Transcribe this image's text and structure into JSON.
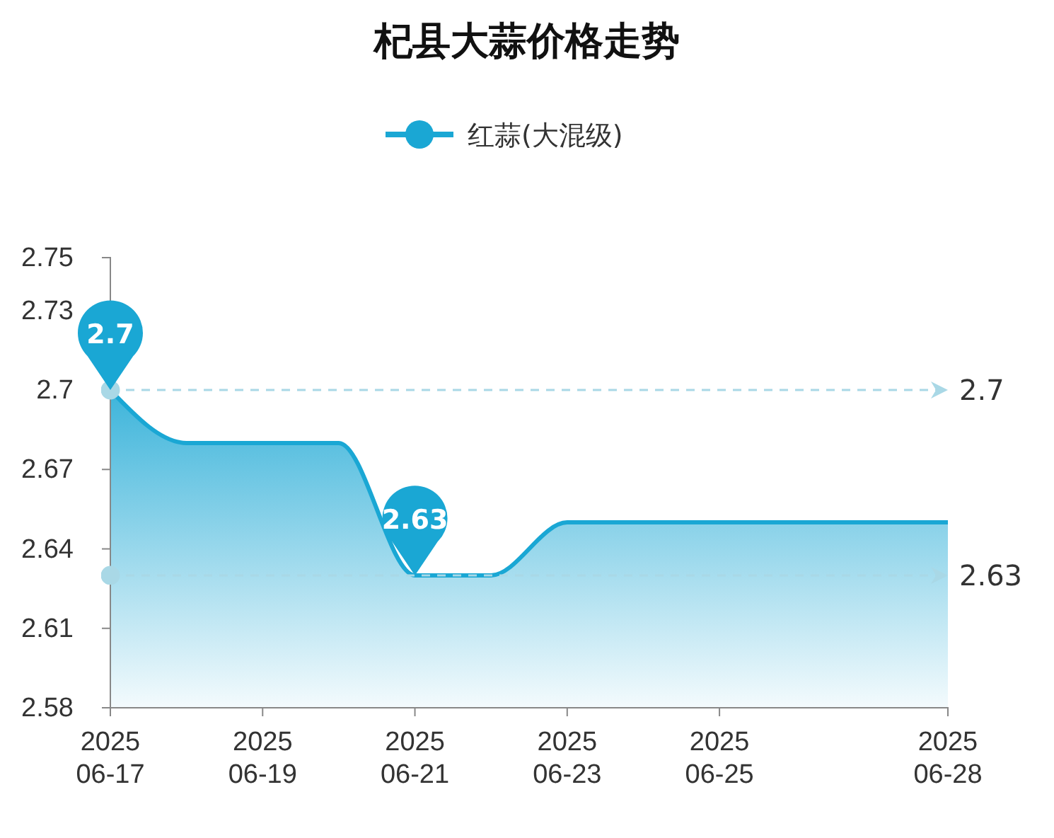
{
  "chart_data": {
    "type": "area",
    "title": "杞县大蒜价格走势",
    "x": [
      "2025-06-17",
      "2025-06-18",
      "2025-06-19",
      "2025-06-20",
      "2025-06-21",
      "2025-06-22",
      "2025-06-23",
      "2025-06-24",
      "2025-06-25",
      "2025-06-26",
      "2025-06-27",
      "2025-06-28"
    ],
    "series": [
      {
        "name": "红蒜(大混级)",
        "color": "#1aa7d4",
        "values": [
          2.7,
          2.68,
          2.68,
          2.68,
          2.63,
          2.63,
          2.65,
          2.65,
          2.65,
          2.65,
          2.65,
          2.65
        ]
      }
    ],
    "xlim": [
      "2025-06-17",
      "2025-06-28"
    ],
    "xticks": [
      {
        "value": "2025-06-17",
        "label": "2025\n06-17"
      },
      {
        "value": "2025-06-19",
        "label": "2025\n06-19"
      },
      {
        "value": "2025-06-21",
        "label": "2025\n06-21"
      },
      {
        "value": "2025-06-23",
        "label": "2025\n06-23"
      },
      {
        "value": "2025-06-25",
        "label": "2025\n06-25"
      },
      {
        "value": "2025-06-28",
        "label": "2025\n06-28"
      }
    ],
    "ylim": [
      2.58,
      2.75
    ],
    "yticks": [
      2.58,
      2.61,
      2.64,
      2.67,
      2.7,
      2.73,
      2.75
    ],
    "ref_lines": [
      {
        "axis": "y",
        "value": 2.7,
        "label": "2.7",
        "color": "#a9d8e6",
        "line_style": "dashed"
      },
      {
        "axis": "y",
        "value": 2.63,
        "label": "2.63",
        "color": "#a9d8e6",
        "line_style": "dashed"
      }
    ],
    "annotations": [
      {
        "text": "2.7",
        "x": "2025-06-17",
        "y": 2.7
      },
      {
        "text": "2.63",
        "x": "2025-06-21",
        "y": 2.63
      }
    ],
    "grid": false,
    "legend": "top",
    "marker": "none",
    "line_style": "solid"
  }
}
